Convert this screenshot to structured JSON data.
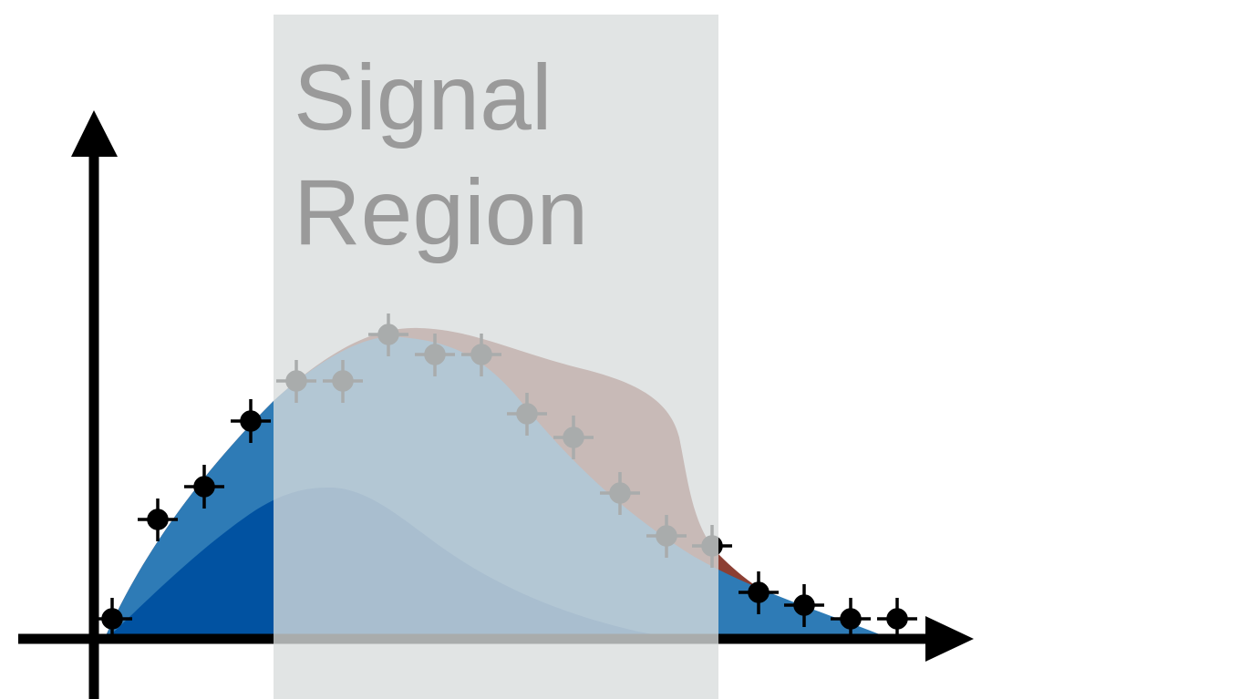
{
  "signal_region": {
    "line1": "Signal",
    "line2": "Region"
  },
  "colors": {
    "background_fill": "#2e7bb6",
    "subcomponent_fill": "#0152a1",
    "signal_fill": "#8c3f33",
    "region_overlay": "#d9dcdc",
    "region_text": "#9a9a9a",
    "axes": "#000000",
    "points": "#000000"
  },
  "icons": {
    "x_axis_end": "arrowhead-right-icon",
    "y_axis_end": "arrowhead-up-icon"
  }
}
